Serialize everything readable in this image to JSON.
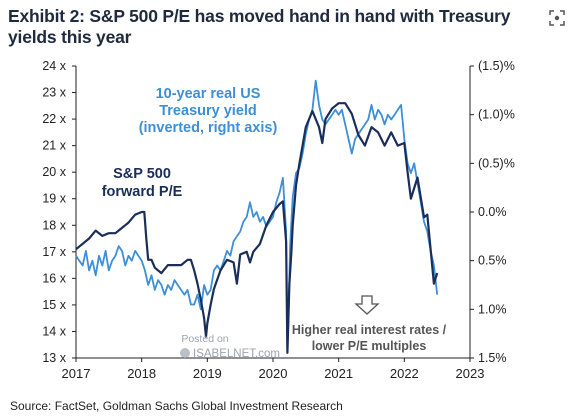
{
  "header": {
    "title": "Exhibit 2: S&P 500 P/E has moved hand in hand with Treasury yields this year",
    "focus_icon": "focus-frame-icon"
  },
  "source": "Source: FactSet, Goldman Sachs Global Investment Research",
  "watermark": {
    "line1": "Posted on",
    "line2": "ISABELNET.com"
  },
  "colors": {
    "pe_series": "#1b2e5a",
    "yield_series": "#3d8fd6",
    "axis": "#222222",
    "title": "#1f2a3c"
  },
  "chart_data": {
    "type": "line",
    "x_ticks": [
      "2017",
      "2018",
      "2019",
      "2020",
      "2021",
      "2022",
      "2023"
    ],
    "xlim": [
      2017,
      2023
    ],
    "y_left": {
      "ticks": [
        "24 x",
        "23 x",
        "22 x",
        "21 x",
        "20 x",
        "19 x",
        "18 x",
        "17 x",
        "16 x",
        "15 x",
        "14 x",
        "13 x"
      ],
      "range": [
        13,
        24
      ]
    },
    "y_right": {
      "ticks": [
        "(1.5)%",
        "(1.0)%",
        "(0.5)%",
        "0.0%",
        "0.5%",
        "1.0%",
        "1.5%"
      ],
      "range": [
        -1.5,
        1.5
      ],
      "inverted": true
    },
    "annotations": {
      "yield_label": [
        "10-year real US",
        "Treasury yield",
        "(inverted, right axis)"
      ],
      "pe_label": [
        "S&P 500",
        "forward P/E"
      ],
      "note": [
        "Higher real interest rates /",
        "lower P/E multiples"
      ]
    },
    "series": [
      {
        "name": "S&P 500 forward P/E",
        "axis": "left",
        "color": "#1b2e5a",
        "x": [
          2017.0,
          2017.1,
          2017.2,
          2017.3,
          2017.4,
          2017.5,
          2017.6,
          2017.7,
          2017.8,
          2017.9,
          2018.0,
          2018.04,
          2018.07,
          2018.1,
          2018.15,
          2018.2,
          2018.3,
          2018.4,
          2018.5,
          2018.6,
          2018.7,
          2018.75,
          2018.8,
          2018.85,
          2018.9,
          2018.95,
          2018.98,
          2019.0,
          2019.05,
          2019.1,
          2019.2,
          2019.3,
          2019.4,
          2019.45,
          2019.5,
          2019.6,
          2019.65,
          2019.7,
          2019.8,
          2019.9,
          2020.0,
          2020.1,
          2020.15,
          2020.2,
          2020.22,
          2020.25,
          2020.28,
          2020.3,
          2020.35,
          2020.4,
          2020.5,
          2020.6,
          2020.7,
          2020.75,
          2020.8,
          2020.9,
          2021.0,
          2021.1,
          2021.2,
          2021.3,
          2021.4,
          2021.5,
          2021.6,
          2021.7,
          2021.8,
          2021.9,
          2022.0,
          2022.05,
          2022.1,
          2022.2,
          2022.3,
          2022.35,
          2022.4,
          2022.45,
          2022.5
        ],
        "values": [
          17.1,
          17.3,
          17.5,
          17.8,
          17.6,
          17.7,
          17.7,
          17.9,
          18.1,
          18.4,
          18.5,
          18.5,
          17.5,
          16.7,
          16.7,
          16.4,
          16.2,
          16.5,
          16.5,
          16.5,
          16.7,
          16.7,
          16.3,
          15.8,
          15.2,
          14.5,
          13.8,
          14.3,
          15.0,
          15.6,
          16.3,
          16.7,
          16.6,
          15.8,
          16.9,
          17.0,
          16.6,
          17.0,
          17.3,
          18.0,
          18.5,
          18.8,
          18.9,
          17.4,
          13.2,
          15.8,
          17.0,
          18.0,
          19.5,
          20.3,
          21.7,
          22.3,
          21.7,
          21.1,
          22.0,
          22.4,
          22.6,
          22.6,
          22.2,
          21.4,
          21.0,
          21.7,
          21.5,
          21.0,
          21.5,
          21.0,
          21.1,
          20.0,
          19.0,
          19.8,
          18.3,
          18.4,
          17.1,
          15.8,
          16.2
        ]
      },
      {
        "name": "10-year real US Treasury yield",
        "axis": "right",
        "color": "#3d8fd6",
        "x": [
          2017.0,
          2017.05,
          2017.1,
          2017.15,
          2017.2,
          2017.25,
          2017.3,
          2017.35,
          2017.4,
          2017.45,
          2017.5,
          2017.55,
          2017.6,
          2017.65,
          2017.7,
          2017.75,
          2017.8,
          2017.85,
          2017.9,
          2017.95,
          2018.0,
          2018.05,
          2018.1,
          2018.15,
          2018.2,
          2018.25,
          2018.3,
          2018.35,
          2018.4,
          2018.45,
          2018.5,
          2018.55,
          2018.6,
          2018.65,
          2018.7,
          2018.75,
          2018.8,
          2018.85,
          2018.9,
          2018.95,
          2019.0,
          2019.05,
          2019.1,
          2019.15,
          2019.2,
          2019.25,
          2019.3,
          2019.35,
          2019.4,
          2019.45,
          2019.5,
          2019.55,
          2019.6,
          2019.65,
          2019.7,
          2019.75,
          2019.8,
          2019.85,
          2019.9,
          2019.95,
          2020.0,
          2020.05,
          2020.1,
          2020.15,
          2020.2,
          2020.22,
          2020.24,
          2020.26,
          2020.3,
          2020.35,
          2020.4,
          2020.45,
          2020.5,
          2020.55,
          2020.6,
          2020.65,
          2020.7,
          2020.75,
          2020.8,
          2020.85,
          2020.9,
          2020.95,
          2021.0,
          2021.05,
          2021.1,
          2021.15,
          2021.2,
          2021.25,
          2021.3,
          2021.35,
          2021.4,
          2021.45,
          2021.5,
          2021.55,
          2021.6,
          2021.65,
          2021.7,
          2021.75,
          2021.8,
          2021.85,
          2021.9,
          2021.95,
          2022.0,
          2022.05,
          2022.1,
          2022.15,
          2022.2,
          2022.25,
          2022.3,
          2022.35,
          2022.4,
          2022.45,
          2022.5
        ],
        "values": [
          0.45,
          0.5,
          0.55,
          0.4,
          0.6,
          0.5,
          0.65,
          0.45,
          0.55,
          0.4,
          0.6,
          0.5,
          0.45,
          0.35,
          0.4,
          0.55,
          0.45,
          0.5,
          0.4,
          0.45,
          0.5,
          0.6,
          0.75,
          0.65,
          0.8,
          0.7,
          0.75,
          0.85,
          0.75,
          0.8,
          0.7,
          0.75,
          0.8,
          0.85,
          0.8,
          0.95,
          0.95,
          0.85,
          1.0,
          0.75,
          0.85,
          0.8,
          0.6,
          0.55,
          0.6,
          0.5,
          0.4,
          0.45,
          0.3,
          0.25,
          0.2,
          0.1,
          0.05,
          -0.1,
          0.05,
          0.0,
          0.1,
          0.05,
          0.15,
          0.1,
          0.05,
          -0.1,
          -0.2,
          -0.35,
          0.2,
          1.45,
          0.95,
          0.35,
          -0.15,
          -0.4,
          -0.45,
          -0.6,
          -0.8,
          -0.95,
          -1.05,
          -1.35,
          -1.1,
          -0.95,
          -0.9,
          -0.95,
          -1.0,
          -1.05,
          -1.0,
          -1.05,
          -0.9,
          -0.75,
          -0.6,
          -0.75,
          -0.8,
          -0.85,
          -0.9,
          -0.95,
          -1.1,
          -0.95,
          -1.05,
          -1.0,
          -0.9,
          -1.0,
          -0.95,
          -1.0,
          -1.05,
          -1.1,
          -0.75,
          -0.5,
          -0.4,
          -0.5,
          -0.3,
          -0.1,
          0.1,
          0.2,
          0.4,
          0.55,
          0.85
        ]
      }
    ]
  }
}
